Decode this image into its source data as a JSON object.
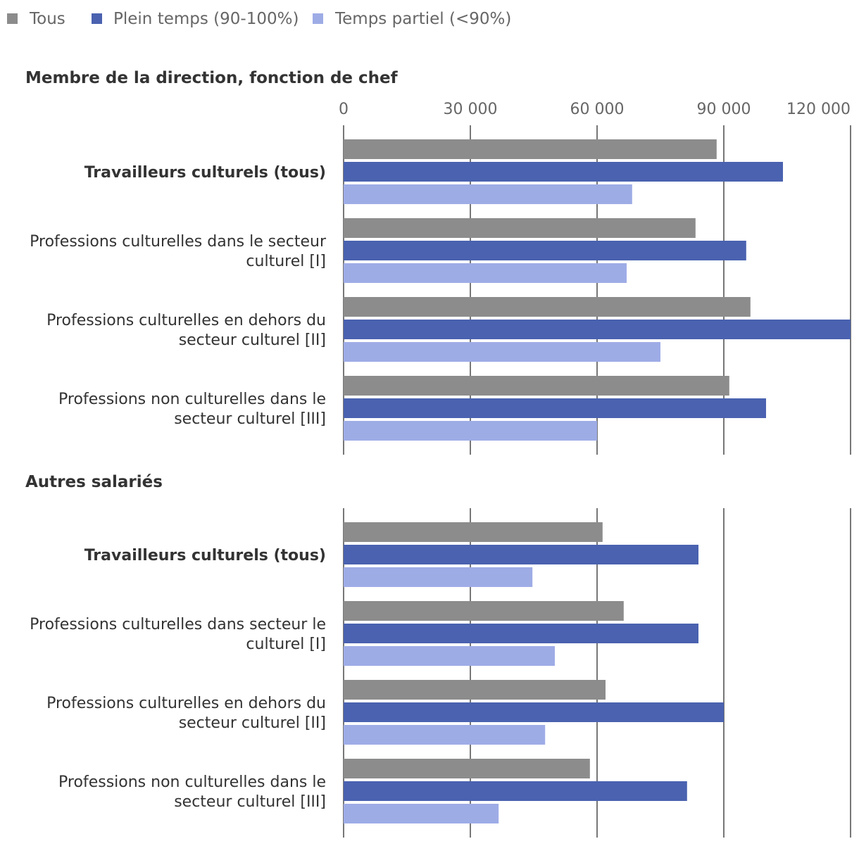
{
  "chart_data": {
    "type": "bar",
    "orientation": "horizontal",
    "legend": [
      {
        "name": "Tous",
        "color": "#8c8c8c"
      },
      {
        "name": "Plein temps (90-100%)",
        "color": "#4a62b0"
      },
      {
        "name": "Temps partiel (<90%)",
        "color": "#9eace6"
      }
    ],
    "xlim": [
      0,
      120000
    ],
    "ticks": [
      0,
      30000,
      60000,
      90000,
      120000
    ],
    "tick_labels": [
      "0",
      "30 000",
      "60 000",
      "90 000",
      "120 000"
    ],
    "panels": [
      {
        "title": "Membre de la direction, fonction de chef",
        "show_tick_labels": true,
        "categories": [
          {
            "label": [
              "Travailleurs culturels (tous)"
            ],
            "bold": true,
            "values": [
              88300,
              104000,
              68300
            ]
          },
          {
            "label": [
              "Professions culturelles dans le secteur",
              "culturel [I]"
            ],
            "bold": false,
            "values": [
              83300,
              95300,
              67000
            ]
          },
          {
            "label": [
              "Professions culturelles en dehors du",
              "secteur culturel [II]"
            ],
            "bold": false,
            "values": [
              96300,
              120000,
              75000
            ]
          },
          {
            "label": [
              "Professions non culturelles dans le",
              "secteur culturel [III]"
            ],
            "bold": false,
            "values": [
              91300,
              100000,
              60000
            ]
          }
        ]
      },
      {
        "title": "Autres salariés",
        "show_tick_labels": false,
        "categories": [
          {
            "label": [
              "Travailleurs culturels (tous)"
            ],
            "bold": true,
            "values": [
              61300,
              84000,
              44700
            ]
          },
          {
            "label": [
              "Professions culturelles dans secteur le",
              "culturel [I]"
            ],
            "bold": false,
            "values": [
              66300,
              84000,
              50000
            ]
          },
          {
            "label": [
              "Professions culturelles en dehors du",
              "secteur culturel [II]"
            ],
            "bold": false,
            "values": [
              62000,
              90000,
              47700
            ]
          },
          {
            "label": [
              "Professions non culturelles dans le",
              "secteur culturel [III]"
            ],
            "bold": false,
            "values": [
              58300,
              81300,
              36700
            ]
          }
        ]
      }
    ]
  }
}
